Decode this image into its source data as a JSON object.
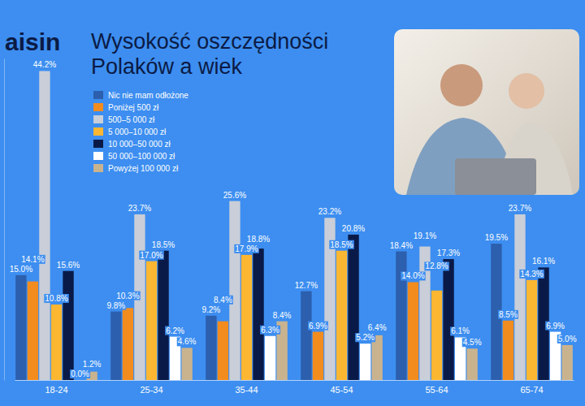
{
  "chart_data": {
    "type": "bar",
    "title": "Wysokość oszczędności Polaków a wiek",
    "annotations": [
      "aisin"
    ],
    "categories": [
      "18-24",
      "25-34",
      "35-44",
      "45-54",
      "55-64",
      "65-74"
    ],
    "series": [
      {
        "name": "Nic nie mam odłożone",
        "color": "#2c5fae",
        "values": [
          15.0,
          9.8,
          9.2,
          12.7,
          18.4,
          19.5
        ],
        "value_labels": [
          "15.0%",
          "9.8%",
          "9.2%",
          "12.7%",
          "18.4%",
          "19.5%"
        ]
      },
      {
        "name": "Poniżej 500 zł",
        "color": "#f28c1e",
        "values": [
          14.1,
          10.3,
          8.4,
          6.9,
          14.0,
          8.5
        ],
        "value_labels": [
          "14.1%",
          "10.3%",
          "8.4%",
          "6.9%",
          "14.0%",
          "8.5%"
        ]
      },
      {
        "name": "500–5 000 zł",
        "color": "#c9ced8",
        "values": [
          44.2,
          23.7,
          25.6,
          23.2,
          19.1,
          23.7
        ],
        "value_labels": [
          "44.2%",
          "23.7%",
          "25.6%",
          "23.2%",
          "19.1%",
          "23.7%"
        ]
      },
      {
        "name": "5 000–10 000 zł",
        "color": "#fbb632",
        "values": [
          10.8,
          17.0,
          17.9,
          18.5,
          12.8,
          14.3
        ],
        "value_labels": [
          "10.8%",
          "17.0%",
          "17.9%",
          "18.5%",
          "12.8%",
          "14.3%"
        ]
      },
      {
        "name": "10 000–50 000 zł",
        "color": "#0a1a48",
        "values": [
          15.6,
          18.5,
          18.8,
          20.8,
          17.3,
          16.1
        ],
        "value_labels": [
          "15.6%",
          "18.5%",
          "18.8%",
          "20.8%",
          "17.3%",
          "16.1%"
        ]
      },
      {
        "name": "50 000–100 000 zł",
        "color": "#ffffff",
        "values": [
          0.0,
          6.2,
          6.3,
          5.2,
          6.1,
          6.9
        ],
        "value_labels": [
          "0.0%",
          "6.2%",
          "6.3%",
          "5.2%",
          "6.1%",
          "6.9%"
        ]
      },
      {
        "name": "Powyżej 100 000 zł",
        "color": "#c9b38f",
        "values": [
          1.2,
          4.6,
          8.4,
          6.4,
          4.5,
          5.0
        ],
        "value_labels": [
          "1.2%",
          "4.6%",
          "8.4%",
          "6.4%",
          "4.5%",
          "5.0%"
        ]
      }
    ],
    "ylim": [
      0,
      46
    ],
    "data_labels": true,
    "tick_labels": "x",
    "legend": "top",
    "grid": false
  }
}
